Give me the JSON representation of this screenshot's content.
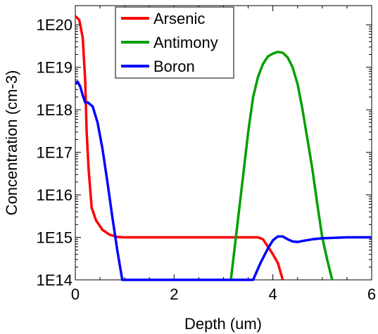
{
  "chart_data": {
    "type": "line",
    "xlabel": "Depth (um)",
    "ylabel": "Concentration (cm-3)",
    "xlim": [
      0,
      6
    ],
    "ylim": [
      100000000000000.0,
      2e+20
    ],
    "yscale": "log",
    "grid": false,
    "legend_position": "top-left",
    "x_ticks": [
      0,
      2,
      4,
      6
    ],
    "x_tick_labels": [
      "0",
      "2",
      "4",
      "6"
    ],
    "y_ticks": [
      100000000000000.0,
      1000000000000000.0,
      1e+16,
      1e+17,
      1e+18,
      1e+19,
      1e+20
    ],
    "y_tick_labels": [
      "1E14",
      "1E15",
      "1E16",
      "1E17",
      "1E18",
      "1E19",
      "1E20"
    ],
    "series": [
      {
        "name": "Arsenic",
        "color": "#ff0000",
        "points": [
          [
            0.0,
            1.6e+20
          ],
          [
            0.08,
            1.3e+20
          ],
          [
            0.15,
            5e+19
          ],
          [
            0.2,
            5e+18
          ],
          [
            0.23,
            3e+17
          ],
          [
            0.27,
            4e+16
          ],
          [
            0.33,
            5000000000000000.0
          ],
          [
            0.42,
            2500000000000000.0
          ],
          [
            0.55,
            1500000000000000.0
          ],
          [
            0.7,
            1150000000000000.0
          ],
          [
            0.85,
            1020000000000000.0
          ],
          [
            1.0,
            1000000000000000.0
          ],
          [
            2.0,
            1000000000000000.0
          ],
          [
            3.0,
            1000000000000000.0
          ],
          [
            3.7,
            1000000000000000.0
          ],
          [
            3.8,
            900000000000000.0
          ],
          [
            3.9,
            600000000000000.0
          ],
          [
            4.0,
            400000000000000.0
          ],
          [
            4.1,
            250000000000000.0
          ],
          [
            4.2,
            100000000000000.0
          ]
        ]
      },
      {
        "name": "Antimony",
        "color": "#00a000",
        "points": [
          [
            3.15,
            100000000000000.0
          ],
          [
            3.3,
            3000000000000000.0
          ],
          [
            3.4,
            3e+16
          ],
          [
            3.5,
            3e+17
          ],
          [
            3.6,
            2e+18
          ],
          [
            3.7,
            6e+18
          ],
          [
            3.8,
            1.2e+19
          ],
          [
            3.9,
            1.8e+19
          ],
          [
            4.0,
            2.1e+19
          ],
          [
            4.1,
            2.3e+19
          ],
          [
            4.2,
            2.2e+19
          ],
          [
            4.3,
            1.7e+19
          ],
          [
            4.4,
            1e+19
          ],
          [
            4.5,
            4e+18
          ],
          [
            4.6,
            1e+18
          ],
          [
            4.7,
            2e+17
          ],
          [
            4.8,
            4e+16
          ],
          [
            4.9,
            6000000000000000.0
          ],
          [
            5.0,
            1000000000000000.0
          ],
          [
            5.1,
            300000000000000.0
          ],
          [
            5.2,
            100000000000000.0
          ]
        ]
      },
      {
        "name": "Boron",
        "color": "#0000ff",
        "points": [
          [
            0.0,
            4.3e+18
          ],
          [
            0.05,
            4.5e+18
          ],
          [
            0.1,
            3.5e+18
          ],
          [
            0.15,
            2.2e+18
          ],
          [
            0.2,
            1.5e+18
          ],
          [
            0.25,
            1.5e+18
          ],
          [
            0.35,
            1.2e+18
          ],
          [
            0.45,
            5e+17
          ],
          [
            0.55,
            1.2e+17
          ],
          [
            0.65,
            2e+16
          ],
          [
            0.75,
            3000000000000000.0
          ],
          [
            0.85,
            500000000000000.0
          ],
          [
            0.95,
            100000000000000.0
          ],
          [
            3.6,
            100000000000000.0
          ],
          [
            3.75,
            250000000000000.0
          ],
          [
            3.9,
            550000000000000.0
          ],
          [
            4.0,
            850000000000000.0
          ],
          [
            4.1,
            1050000000000000.0
          ],
          [
            4.2,
            1050000000000000.0
          ],
          [
            4.3,
            900000000000000.0
          ],
          [
            4.4,
            800000000000000.0
          ],
          [
            4.5,
            780000000000000.0
          ],
          [
            4.6,
            820000000000000.0
          ],
          [
            4.8,
            900000000000000.0
          ],
          [
            5.0,
            950000000000000.0
          ],
          [
            5.5,
            1000000000000000.0
          ],
          [
            6.0,
            1000000000000000.0
          ]
        ]
      }
    ]
  }
}
